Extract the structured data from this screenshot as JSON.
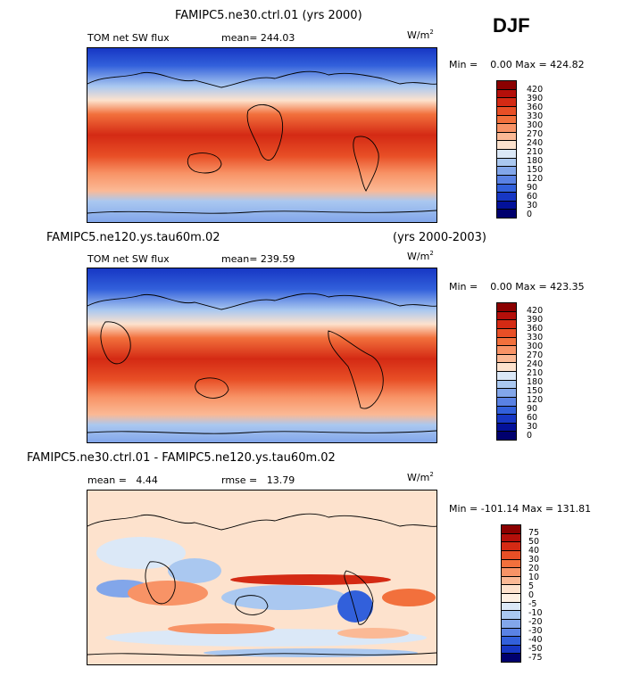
{
  "season": "DJF",
  "panels": [
    {
      "case_title": "FAMIPC5.ne30.ctrl.01 (yrs 2000)",
      "years": "",
      "variable": "TOM net SW flux",
      "stats1": "mean= 244.03",
      "stats2": "",
      "units": "W/m",
      "units_sup": "2",
      "minmax": "Min =    0.00 Max = 424.82",
      "levels": [
        "420",
        "390",
        "360",
        "330",
        "300",
        "270",
        "240",
        "210",
        "180",
        "150",
        "120",
        "90",
        "60",
        "30",
        "0"
      ]
    },
    {
      "case_title": "FAMIPC5.ne120.ys.tau60m.02",
      "years": "(yrs 2000-2003)",
      "variable": "TOM net SW flux",
      "stats1": "mean= 239.59",
      "stats2": "",
      "units": "W/m",
      "units_sup": "2",
      "minmax": "Min =    0.00 Max = 423.35",
      "levels": [
        "420",
        "390",
        "360",
        "330",
        "300",
        "270",
        "240",
        "210",
        "180",
        "150",
        "120",
        "90",
        "60",
        "30",
        "0"
      ]
    },
    {
      "case_title": "FAMIPC5.ne30.ctrl.01 - FAMIPC5.ne120.ys.tau60m.02",
      "years": "",
      "variable": "",
      "stats1": "mean =   4.44",
      "stats2": "rmse =   13.79",
      "units": "W/m",
      "units_sup": "2",
      "minmax": "Min = -101.14 Max = 131.81",
      "levels": [
        "75",
        "50",
        "40",
        "30",
        "20",
        "10",
        "5",
        "0",
        "-5",
        "-10",
        "-20",
        "-30",
        "-40",
        "-50",
        "-75"
      ]
    }
  ],
  "colors": {
    "abs_scale": [
      "#8b0000",
      "#b40f0a",
      "#d42a14",
      "#e84f26",
      "#f2703c",
      "#f89366",
      "#fbb995",
      "#fde2cd",
      "#dbe8f7",
      "#aac8f0",
      "#82a6ea",
      "#5a82e4",
      "#3260db",
      "#1737c4",
      "#03119a",
      "#00006e"
    ],
    "diff_scale": [
      "#8b0000",
      "#b40f0a",
      "#d42a14",
      "#e84f26",
      "#f2703c",
      "#f89366",
      "#fbb995",
      "#fde2cd",
      "#fdf0e3",
      "#dbe8f7",
      "#aac8f0",
      "#82a6ea",
      "#5a82e4",
      "#3260db",
      "#1737c4",
      "#00006e"
    ]
  }
}
